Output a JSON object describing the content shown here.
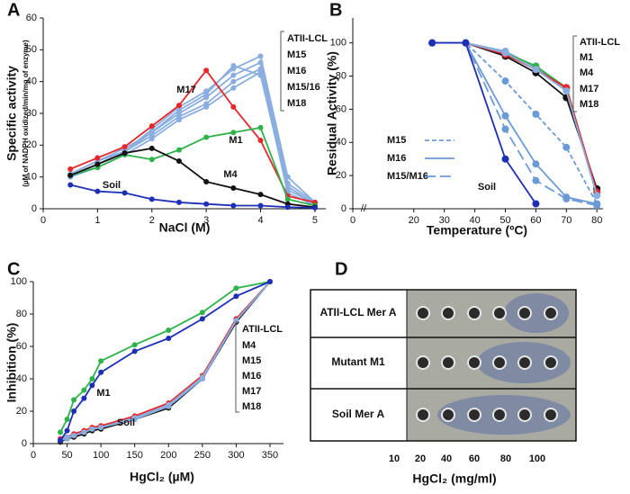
{
  "chart_data": [
    {
      "type": "line",
      "label": "A",
      "y_label": "Specific activity",
      "y_sublabel": "(µM of NADPH oxidized/min/mg of enzyme)",
      "x_label": "NaCl (M)",
      "x": [
        0.5,
        1,
        1.5,
        2,
        2.5,
        3,
        3.5,
        4,
        4.5,
        5
      ],
      "xlim": [
        0,
        5.2
      ],
      "xticks": [
        0,
        1,
        2,
        3,
        4,
        5
      ],
      "ylim": [
        0,
        60
      ],
      "yticks": [
        0,
        10,
        20,
        30,
        40,
        50,
        60
      ],
      "series": [
        {
          "name": "ATII-LCL",
          "color": "#8aaee0",
          "values": [
            10,
            14,
            18,
            25,
            32,
            37,
            44,
            48,
            10,
            2
          ]
        },
        {
          "name": "M15",
          "color": "#8aaee0",
          "values": [
            11,
            15,
            19,
            24,
            30,
            35,
            42,
            46,
            8,
            2
          ]
        },
        {
          "name": "M16",
          "color": "#8aaee0",
          "values": [
            10,
            14,
            18,
            23,
            29,
            33,
            40,
            44,
            7,
            1.5
          ]
        },
        {
          "name": "M15/16",
          "color": "#8aaee0",
          "values": [
            11,
            15,
            18,
            24,
            31,
            36,
            45,
            42,
            6,
            1.5
          ]
        },
        {
          "name": "M18",
          "color": "#8aaee0",
          "values": [
            10,
            13,
            17,
            22,
            28,
            32,
            38,
            43,
            5,
            1
          ]
        },
        {
          "name": "M17",
          "color": "#e8262a",
          "values": [
            12.5,
            16,
            19.5,
            26,
            32.5,
            43.5,
            32,
            21.5,
            4,
            2
          ]
        },
        {
          "name": "M1",
          "color": "#2db34a",
          "values": [
            10.5,
            13,
            17,
            15.5,
            18.5,
            22.5,
            24,
            25.5,
            3,
            1
          ]
        },
        {
          "name": "M4",
          "color": "#111111",
          "values": [
            10.5,
            14,
            17.5,
            19,
            15,
            8.5,
            6.5,
            4.5,
            1.5,
            0.5
          ]
        },
        {
          "name": "Soil",
          "color": "#1c2fb5",
          "values": [
            7.5,
            5.5,
            5,
            3,
            2,
            1.5,
            1,
            1,
            0.5,
            0.3
          ]
        }
      ]
    },
    {
      "type": "line",
      "label": "B",
      "y_label": "Residual Activity (%)",
      "x_label": "Temperature (ºC)",
      "x": [
        26,
        37,
        50,
        60,
        70,
        80
      ],
      "xlim": [
        0,
        82
      ],
      "xticks": [
        0,
        20,
        30,
        40,
        50,
        60,
        70,
        80
      ],
      "ylim": [
        0,
        115
      ],
      "yticks": [
        0,
        20,
        40,
        60,
        80,
        100
      ],
      "series": [
        {
          "name": "ATII-LCL",
          "color": "#8aaee0",
          "values": [
            100,
            100,
            95,
            85,
            72,
            8
          ]
        },
        {
          "name": "M1",
          "color": "#2db34a",
          "values": [
            100,
            100,
            94,
            86,
            73,
            10
          ]
        },
        {
          "name": "M4",
          "color": "#111111",
          "values": [
            100,
            100,
            92,
            82,
            67,
            12
          ]
        },
        {
          "name": "M17",
          "color": "#e8262a",
          "values": [
            100,
            100,
            93,
            84,
            73,
            10
          ]
        },
        {
          "name": "M18",
          "color": "#8aaee0",
          "values": [
            100,
            100,
            94,
            84,
            71,
            8
          ]
        },
        {
          "name": "M15",
          "color": "#6b9bd6",
          "linestyle": "dashed",
          "values": [
            100,
            100,
            77,
            57,
            37,
            3
          ]
        },
        {
          "name": "M16",
          "color": "#6b9bd6",
          "linestyle": "solid",
          "values": [
            100,
            100,
            56,
            27,
            7,
            3
          ]
        },
        {
          "name": "M15/M16",
          "color": "#6b9bd6",
          "linestyle": "long-dashed",
          "values": [
            100,
            100,
            48,
            17,
            6,
            2
          ]
        },
        {
          "name": "Soil",
          "color": "#1c2fb5",
          "values": [
            100,
            100,
            30,
            3,
            null,
            null
          ]
        }
      ]
    },
    {
      "type": "line",
      "label": "C",
      "y_label": "Inhibition  (%)",
      "x_label": "HgCl₂ (µM)",
      "x": [
        40,
        50,
        60,
        75,
        87,
        100,
        150,
        200,
        250,
        300,
        350
      ],
      "xlim": [
        0,
        370
      ],
      "xticks": [
        0,
        50,
        100,
        150,
        200,
        250,
        300,
        350
      ],
      "ylim": [
        0,
        100
      ],
      "yticks": [
        0,
        20,
        40,
        60,
        80,
        100
      ],
      "series": [
        {
          "name": "ATII-LCL",
          "color": "#8aaee0",
          "values": [
            2,
            4,
            5,
            7,
            9,
            10,
            16,
            24,
            41,
            77,
            100
          ]
        },
        {
          "name": "M4",
          "color": "#111111",
          "values": [
            1,
            3,
            4,
            6,
            8,
            9,
            15,
            22,
            40,
            75,
            100
          ]
        },
        {
          "name": "M15",
          "color": "#8aaee0",
          "values": [
            2,
            4,
            5,
            8,
            9,
            10,
            16,
            23,
            41,
            76,
            100
          ]
        },
        {
          "name": "M16",
          "color": "#8aaee0",
          "values": [
            2,
            3,
            5,
            7,
            9,
            10,
            15,
            23,
            40,
            76,
            100
          ]
        },
        {
          "name": "M17",
          "color": "#e8262a",
          "values": [
            3,
            4,
            6,
            8,
            10,
            11,
            17,
            25,
            42,
            77,
            100
          ]
        },
        {
          "name": "M18",
          "color": "#8aaee0",
          "values": [
            2,
            4,
            5,
            7,
            9,
            10,
            16,
            24,
            41,
            76,
            100
          ]
        },
        {
          "name": "M1",
          "color": "#2db34a",
          "values": [
            7,
            15,
            27,
            33,
            40,
            51,
            61,
            70,
            81,
            96,
            100
          ]
        },
        {
          "name": "Soil",
          "color": "#1c2fb5",
          "values": [
            2,
            8,
            20,
            28,
            36,
            44,
            57,
            65,
            77,
            91,
            100
          ]
        }
      ]
    }
  ],
  "panel_d": {
    "label": "D",
    "rows": [
      "ATII-LCL Mer A",
      "Mutant M1",
      "Soil Mer A"
    ],
    "concentrations": [
      10,
      20,
      40,
      60,
      80,
      100
    ],
    "x_label": "HgCl₂ (mg/ml)"
  }
}
